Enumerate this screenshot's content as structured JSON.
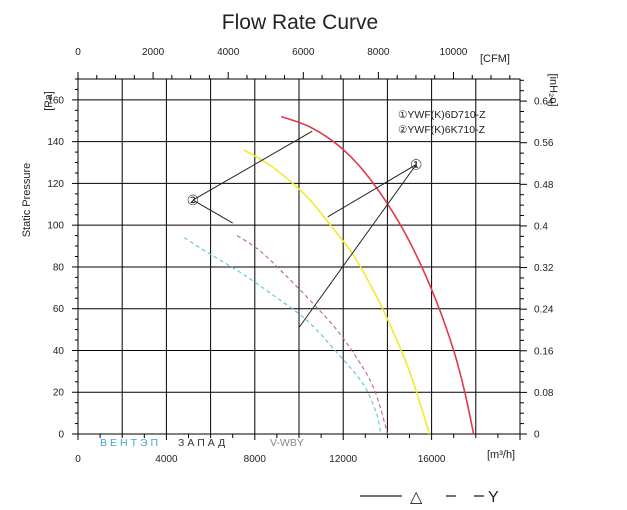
{
  "chart_data": {
    "type": "line",
    "title": "Flow Rate Curve",
    "ylabel": "Static Pressure",
    "left_unit": "[Pa]",
    "right_unit": "[inH₂o]",
    "top_unit": "[CFM]",
    "bottom_unit": "[m³/h]",
    "xlim": [
      0,
      20000
    ],
    "ylim": [
      0,
      170
    ],
    "x_ticks": [
      0,
      4000,
      8000,
      12000,
      16000
    ],
    "x_tick_labels": [
      "0",
      "4000",
      "8000",
      "12000",
      "16000"
    ],
    "y_ticks": [
      0,
      20,
      40,
      60,
      80,
      100,
      120,
      140,
      160
    ],
    "y_tick_labels": [
      "0",
      "20",
      "40",
      "60",
      "80",
      "100",
      "120",
      "140",
      "160"
    ],
    "top_ticks_cfm": [
      0,
      2000,
      4000,
      6000,
      8000,
      10000
    ],
    "top_tick_labels": [
      "0",
      "2000",
      "4000",
      "6000",
      "8000",
      "10000"
    ],
    "right_ticks_inh2o": [
      0,
      0.08,
      0.16,
      0.24,
      0.32,
      0.4,
      0.48,
      0.56,
      0.64
    ],
    "right_tick_labels": [
      "0",
      "0.08",
      "0.16",
      "0.24",
      "0.32",
      "0.4",
      "0.48",
      "0.56",
      "0.64"
    ],
    "grid": true,
    "legend": {
      "position": "top-right",
      "entries": [
        "①YWF(K)6D710-Z",
        "②YWF(K)6K710-Z"
      ]
    },
    "series": [
      {
        "color": "#e0394a",
        "style": "solid",
        "x": [
          9200,
          10500,
          11800,
          13000,
          14200,
          15200,
          16200,
          17000,
          17500,
          17900
        ],
        "y": [
          152,
          147,
          138,
          125,
          107,
          88,
          64,
          40,
          20,
          0
        ]
      },
      {
        "color": "#f2ea2a",
        "style": "solid",
        "x": [
          7500,
          8500,
          9500,
          10500,
          11500,
          12500,
          13500,
          14300,
          15000,
          15500,
          15900
        ],
        "y": [
          136,
          130,
          122,
          112,
          99,
          85,
          66,
          48,
          30,
          14,
          0
        ]
      },
      {
        "color": "#c0608f",
        "style": "dashed",
        "x": [
          7200,
          8200,
          9300,
          10500,
          11700,
          12700,
          13300,
          13700,
          14000
        ],
        "y": [
          95,
          88,
          77,
          64,
          50,
          35,
          24,
          12,
          0
        ]
      },
      {
        "color": "#5dc5d6",
        "style": "dashed",
        "x": [
          4800,
          6000,
          7400,
          8900,
          10400,
          11800,
          12900,
          13500,
          13700
        ],
        "y": [
          94,
          86,
          77,
          66,
          54,
          38,
          24,
          10,
          0
        ]
      }
    ],
    "annotations": [
      {
        "text": "①",
        "anchor": [
          15300,
          129
        ],
        "targets": [
          [
            11300,
            104
          ],
          [
            10000,
            51
          ]
        ]
      },
      {
        "text": "②",
        "anchor": [
          5200,
          112
        ],
        "targets": [
          [
            10600,
            145
          ],
          [
            7000,
            101
          ]
        ]
      }
    ],
    "watermark": {
      "part1": "ВЕНТЭП",
      "part2": "ЗАПАД",
      "part3": "V-WBY"
    },
    "bottom_legend": {
      "triangle": "△",
      "y": "Y"
    }
  }
}
